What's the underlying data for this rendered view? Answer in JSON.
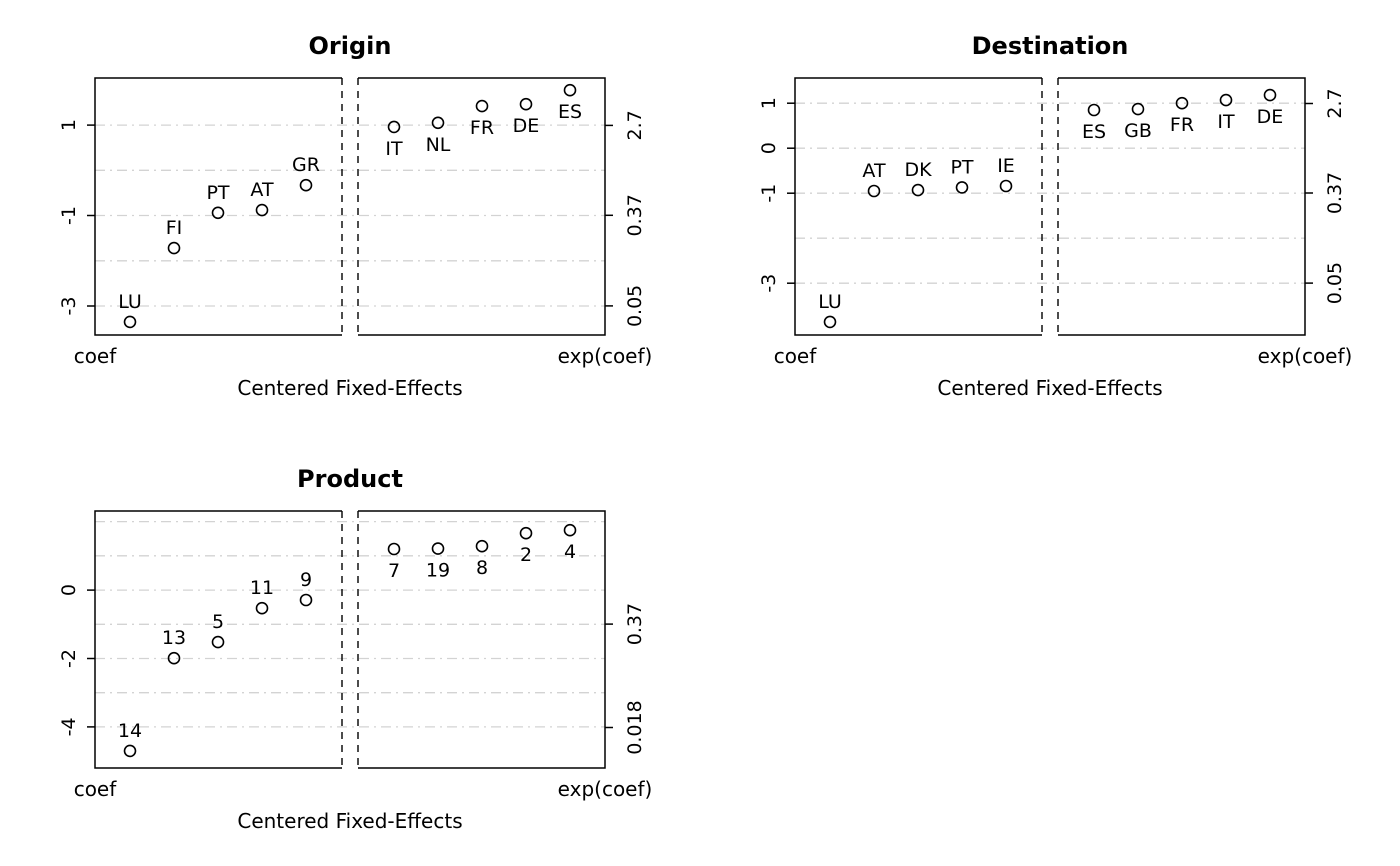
{
  "figure": {
    "background": "#ffffff",
    "grid_color": "#d3d3d3",
    "point_color": "#000000"
  },
  "chart_data": [
    {
      "type": "scatter",
      "panel": "top-left",
      "title": "Origin",
      "xlabel": "Centered Fixed-Effects",
      "left_caption": "coef",
      "right_caption": "exp(coef)",
      "ylim": [
        -3.64,
        2.04
      ],
      "grid": true,
      "gridlines": [
        1,
        0,
        -1,
        -2,
        -3
      ],
      "break_slot": 5,
      "left_ticks": [
        {
          "v": 1,
          "label": "1"
        },
        {
          "v": -1,
          "label": "-1"
        },
        {
          "v": -3,
          "label": "-3"
        }
      ],
      "right_ticks": [
        {
          "v": 0.993,
          "label": "2.7"
        },
        {
          "v": -0.994,
          "label": "0.37"
        },
        {
          "v": -2.996,
          "label": "0.05"
        }
      ],
      "points": [
        {
          "label": "LU",
          "value": -3.35
        },
        {
          "label": "FI",
          "value": -1.72
        },
        {
          "label": "PT",
          "value": -0.94
        },
        {
          "label": "AT",
          "value": -0.88
        },
        {
          "label": "GR",
          "value": -0.33
        },
        {
          "label": "IT",
          "value": 0.96
        },
        {
          "label": "NL",
          "value": 1.05
        },
        {
          "label": "FR",
          "value": 1.42
        },
        {
          "label": "DE",
          "value": 1.46
        },
        {
          "label": "ES",
          "value": 1.77
        }
      ]
    },
    {
      "type": "scatter",
      "panel": "top-right",
      "title": "Destination",
      "xlabel": "Centered Fixed-Effects",
      "left_caption": "coef",
      "right_caption": "exp(coef)",
      "ylim": [
        -4.15,
        1.56
      ],
      "grid": true,
      "gridlines": [
        1,
        0,
        -1,
        -2,
        -3
      ],
      "break_slot": 5,
      "left_ticks": [
        {
          "v": 1,
          "label": "1"
        },
        {
          "v": 0,
          "label": "0"
        },
        {
          "v": -1,
          "label": "-1"
        },
        {
          "v": -3,
          "label": "-3"
        }
      ],
      "right_ticks": [
        {
          "v": 0.993,
          "label": "2.7"
        },
        {
          "v": -0.994,
          "label": "0.37"
        },
        {
          "v": -2.996,
          "label": "0.05"
        }
      ],
      "points": [
        {
          "label": "LU",
          "value": -3.86
        },
        {
          "label": "AT",
          "value": -0.95
        },
        {
          "label": "DK",
          "value": -0.93
        },
        {
          "label": "PT",
          "value": -0.87
        },
        {
          "label": "IE",
          "value": -0.84
        },
        {
          "label": "ES",
          "value": 0.85
        },
        {
          "label": "GB",
          "value": 0.87
        },
        {
          "label": "FR",
          "value": 1.0
        },
        {
          "label": "IT",
          "value": 1.07
        },
        {
          "label": "DE",
          "value": 1.18
        }
      ]
    },
    {
      "type": "scatter",
      "panel": "bottom-left",
      "title": "Product",
      "xlabel": "Centered Fixed-Effects",
      "left_caption": "coef",
      "right_caption": "exp(coef)",
      "ylim": [
        -5.2,
        2.31
      ],
      "grid": true,
      "gridlines": [
        2,
        1,
        0,
        -1,
        -2,
        -3,
        -4
      ],
      "break_slot": 5,
      "left_ticks": [
        {
          "v": 0,
          "label": "0"
        },
        {
          "v": -2,
          "label": "-2"
        },
        {
          "v": -4,
          "label": "-4"
        }
      ],
      "right_ticks": [
        {
          "v": -0.994,
          "label": "0.37"
        },
        {
          "v": -4.017,
          "label": "0.018"
        }
      ],
      "points": [
        {
          "label": "14",
          "value": -4.7
        },
        {
          "label": "13",
          "value": -1.99
        },
        {
          "label": "5",
          "value": -1.52
        },
        {
          "label": "11",
          "value": -0.53
        },
        {
          "label": "9",
          "value": -0.29
        },
        {
          "label": "7",
          "value": 1.2
        },
        {
          "label": "19",
          "value": 1.21
        },
        {
          "label": "8",
          "value": 1.28
        },
        {
          "label": "2",
          "value": 1.66
        },
        {
          "label": "4",
          "value": 1.75
        }
      ]
    }
  ]
}
